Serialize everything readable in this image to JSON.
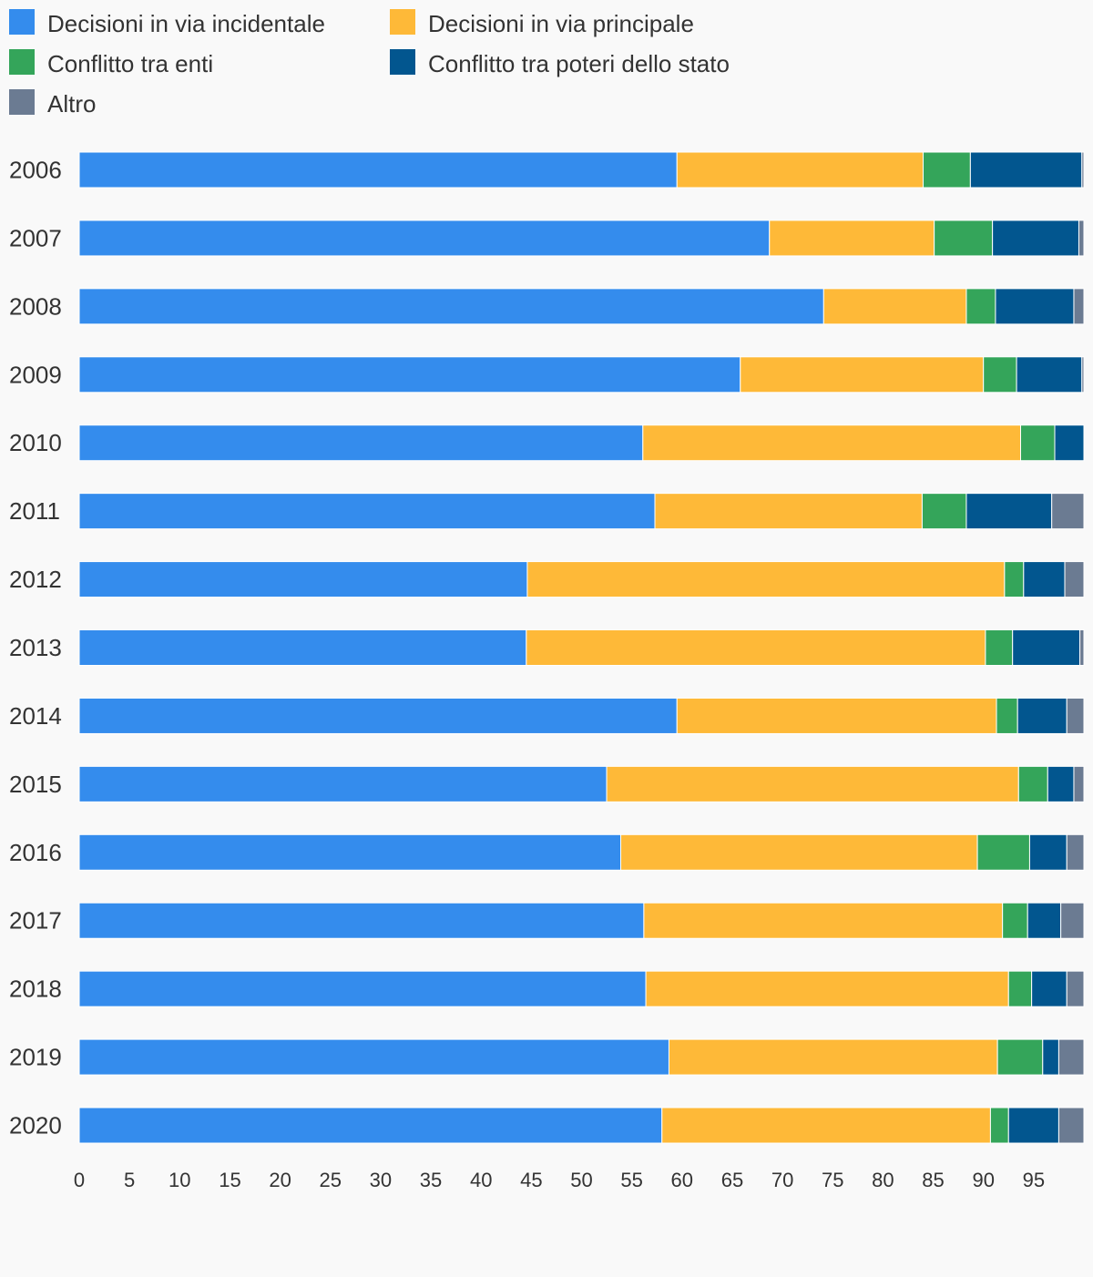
{
  "chart_data": {
    "type": "bar",
    "orientation": "horizontal",
    "stacked": true,
    "categories": [
      "2006",
      "2007",
      "2008",
      "2009",
      "2010",
      "2011",
      "2012",
      "2013",
      "2014",
      "2015",
      "2016",
      "2017",
      "2018",
      "2019",
      "2020"
    ],
    "series": [
      {
        "name": "Decisioni in via incidentale",
        "color": "#348ced",
        "values": [
          59.5,
          68.7,
          74.1,
          65.8,
          56.1,
          57.3,
          44.6,
          44.5,
          59.5,
          52.5,
          53.9,
          56.2,
          56.4,
          58.7,
          58.0
        ]
      },
      {
        "name": "Decisioni in via principale",
        "color": "#feb938",
        "values": [
          24.5,
          16.4,
          14.2,
          24.2,
          37.6,
          26.6,
          47.5,
          45.7,
          31.8,
          41.0,
          35.5,
          35.7,
          36.1,
          32.7,
          32.7
        ]
      },
      {
        "name": "Conflitto tra enti",
        "color": "#34a55a",
        "values": [
          4.7,
          5.8,
          2.9,
          3.3,
          3.4,
          4.4,
          1.9,
          2.7,
          2.1,
          2.9,
          5.2,
          2.5,
          2.3,
          4.5,
          1.8
        ]
      },
      {
        "name": "Conflitto tra poteri dello stato",
        "color": "#02568f",
        "values": [
          11.1,
          8.6,
          7.8,
          6.5,
          2.9,
          8.5,
          4.1,
          6.7,
          4.9,
          2.6,
          3.7,
          3.3,
          3.5,
          1.6,
          5.0
        ]
      },
      {
        "name": "Altro",
        "color": "#6b7b92",
        "values": [
          0.2,
          0.5,
          1.0,
          0.2,
          0.0,
          3.2,
          1.9,
          0.4,
          1.7,
          1.0,
          1.7,
          2.6,
          1.7,
          2.5,
          2.5
        ]
      }
    ],
    "xlim": [
      0,
      100
    ],
    "xticks": [
      "0",
      "5",
      "10",
      "15",
      "20",
      "25",
      "30",
      "35",
      "40",
      "45",
      "50",
      "55",
      "60",
      "65",
      "70",
      "75",
      "80",
      "85",
      "90",
      "95"
    ],
    "xtick_values": [
      0,
      5,
      10,
      15,
      20,
      25,
      30,
      35,
      40,
      45,
      50,
      55,
      60,
      65,
      70,
      75,
      80,
      85,
      90,
      95
    ],
    "legend_position": "top-left",
    "grid": false
  }
}
